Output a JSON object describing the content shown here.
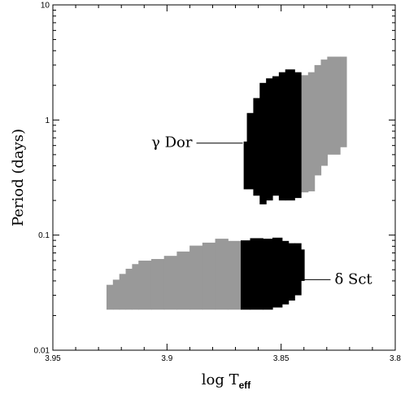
{
  "chart_data": {
    "type": "area",
    "title": "",
    "xlabel": "log T",
    "xlabel_sub": "eff",
    "ylabel": "Period (days)",
    "x_reversed": true,
    "xlim": [
      3.95,
      3.8
    ],
    "ylim": [
      0.01,
      10
    ],
    "y_scale": "log",
    "x_ticks": [
      {
        "v": 3.95,
        "label": "3.95"
      },
      {
        "v": 3.9,
        "label": "3.9"
      },
      {
        "v": 3.85,
        "label": "3.85"
      },
      {
        "v": 3.8,
        "label": "3.8"
      }
    ],
    "x_minor_step": 0.01,
    "y_ticks": [
      {
        "v": 0.01,
        "label": "0.01"
      },
      {
        "v": 0.1,
        "label": "0.1"
      },
      {
        "v": 1,
        "label": "1"
      },
      {
        "v": 10,
        "label": "10"
      }
    ],
    "colors": {
      "gray": "#999999",
      "black": "#000000"
    },
    "regions": [
      {
        "name": "gamma-dor-gray",
        "color": "gray",
        "columns": [
          {
            "x0": 3.8413,
            "x1": 3.8382,
            "lo": 0.235,
            "hi": 2.45
          },
          {
            "x0": 3.8382,
            "x1": 3.8354,
            "lo": 0.24,
            "hi": 2.6
          },
          {
            "x0": 3.8354,
            "x1": 3.8326,
            "lo": 0.33,
            "hi": 3.0
          },
          {
            "x0": 3.8326,
            "x1": 3.8298,
            "lo": 0.4,
            "hi": 3.35
          },
          {
            "x0": 3.8298,
            "x1": 3.8242,
            "lo": 0.5,
            "hi": 3.55
          },
          {
            "x0": 3.8242,
            "x1": 3.8214,
            "lo": 0.58,
            "hi": 3.55
          }
        ]
      },
      {
        "name": "gamma-dor-black",
        "color": "black",
        "columns": [
          {
            "x0": 3.8664,
            "x1": 3.865,
            "lo": 0.25,
            "hi": 0.65
          },
          {
            "x0": 3.865,
            "x1": 3.8622,
            "lo": 0.25,
            "hi": 1.15
          },
          {
            "x0": 3.8622,
            "x1": 3.8594,
            "lo": 0.22,
            "hi": 1.55
          },
          {
            "x0": 3.8594,
            "x1": 3.8566,
            "lo": 0.185,
            "hi": 2.1
          },
          {
            "x0": 3.8566,
            "x1": 3.8538,
            "lo": 0.2,
            "hi": 2.3
          },
          {
            "x0": 3.8538,
            "x1": 3.851,
            "lo": 0.22,
            "hi": 2.4
          },
          {
            "x0": 3.851,
            "x1": 3.8482,
            "lo": 0.2,
            "hi": 2.6
          },
          {
            "x0": 3.8482,
            "x1": 3.8441,
            "lo": 0.2,
            "hi": 2.75
          },
          {
            "x0": 3.8441,
            "x1": 3.8413,
            "lo": 0.21,
            "hi": 2.6
          }
        ]
      },
      {
        "name": "delta-sct-gray",
        "color": "gray",
        "columns": [
          {
            "x0": 3.9265,
            "x1": 3.9237,
            "lo": 0.0225,
            "hi": 0.037
          },
          {
            "x0": 3.9237,
            "x1": 3.9209,
            "lo": 0.0225,
            "hi": 0.041
          },
          {
            "x0": 3.9209,
            "x1": 3.9181,
            "lo": 0.0225,
            "hi": 0.046
          },
          {
            "x0": 3.9181,
            "x1": 3.9153,
            "lo": 0.0225,
            "hi": 0.051
          },
          {
            "x0": 3.9153,
            "x1": 3.9125,
            "lo": 0.0225,
            "hi": 0.056
          },
          {
            "x0": 3.9125,
            "x1": 3.9069,
            "lo": 0.0225,
            "hi": 0.06
          },
          {
            "x0": 3.9069,
            "x1": 3.9013,
            "lo": 0.0225,
            "hi": 0.062
          },
          {
            "x0": 3.9013,
            "x1": 3.8957,
            "lo": 0.0225,
            "hi": 0.066
          },
          {
            "x0": 3.8957,
            "x1": 3.8901,
            "lo": 0.0225,
            "hi": 0.072
          },
          {
            "x0": 3.8901,
            "x1": 3.8845,
            "lo": 0.0225,
            "hi": 0.081
          },
          {
            "x0": 3.8845,
            "x1": 3.8789,
            "lo": 0.0225,
            "hi": 0.086
          },
          {
            "x0": 3.8789,
            "x1": 3.8733,
            "lo": 0.0225,
            "hi": 0.093
          },
          {
            "x0": 3.8733,
            "x1": 3.8677,
            "lo": 0.0225,
            "hi": 0.089
          }
        ]
      },
      {
        "name": "delta-sct-black",
        "color": "black",
        "columns": [
          {
            "x0": 3.8677,
            "x1": 3.8636,
            "lo": 0.0225,
            "hi": 0.09
          },
          {
            "x0": 3.8636,
            "x1": 3.858,
            "lo": 0.0225,
            "hi": 0.094
          },
          {
            "x0": 3.858,
            "x1": 3.8538,
            "lo": 0.0225,
            "hi": 0.093
          },
          {
            "x0": 3.8538,
            "x1": 3.8496,
            "lo": 0.0235,
            "hi": 0.095
          },
          {
            "x0": 3.8496,
            "x1": 3.8468,
            "lo": 0.025,
            "hi": 0.089
          },
          {
            "x0": 3.8468,
            "x1": 3.8441,
            "lo": 0.027,
            "hi": 0.085
          },
          {
            "x0": 3.8441,
            "x1": 3.8413,
            "lo": 0.03,
            "hi": 0.085
          },
          {
            "x0": 3.8413,
            "x1": 3.8399,
            "lo": 0.04,
            "hi": 0.075
          }
        ]
      }
    ],
    "annotations": [
      {
        "text": "γ Dor",
        "anchor_x": 3.8668,
        "anchor_y": 0.63
      },
      {
        "text": "δ Sct",
        "anchor_x": 3.8401,
        "anchor_y": 0.041
      }
    ]
  }
}
